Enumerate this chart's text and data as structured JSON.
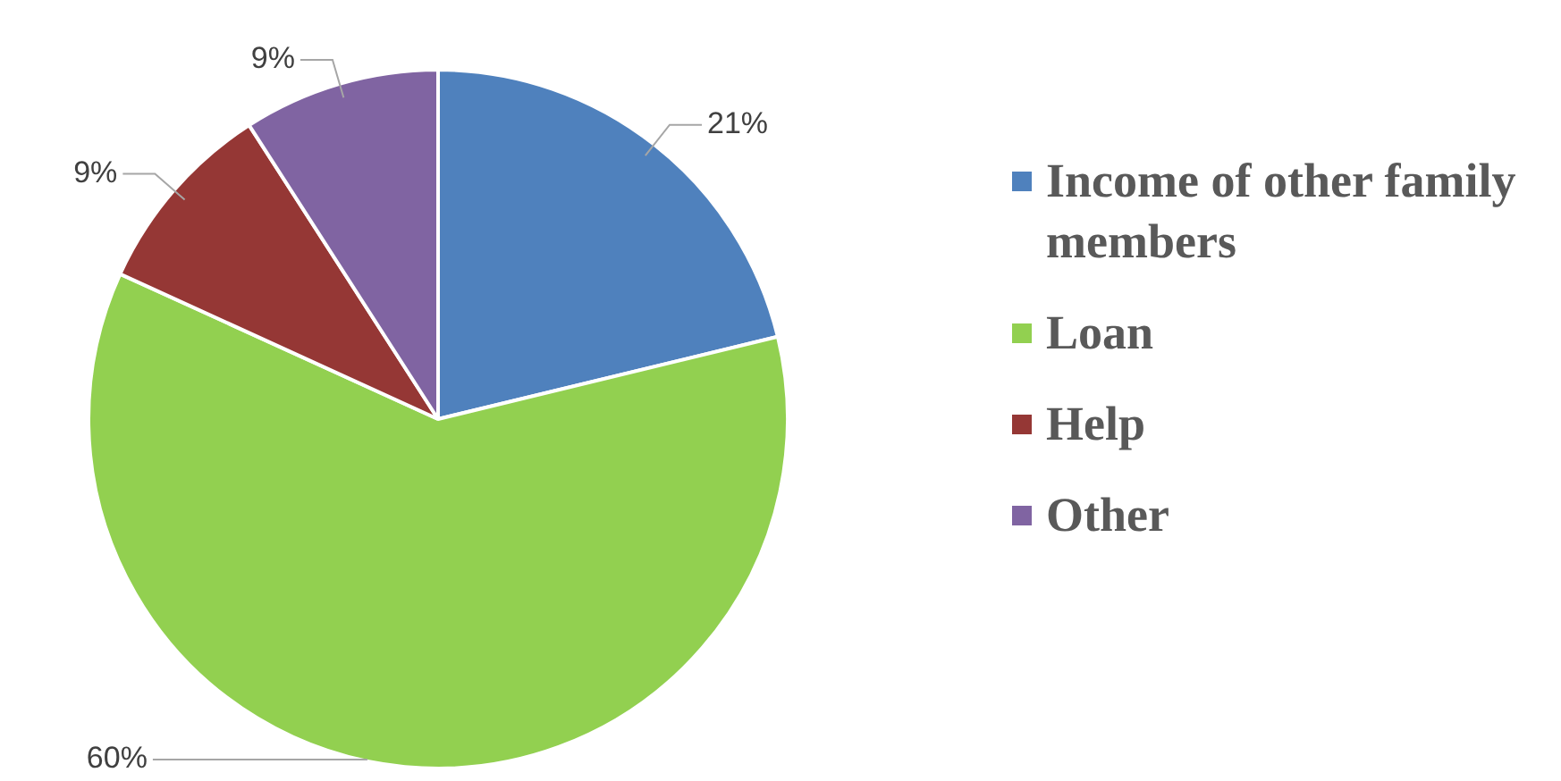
{
  "chart_data": {
    "type": "pie",
    "categories": [
      "Income of other family members",
      "Loan",
      "Help",
      "Other"
    ],
    "values": [
      21,
      60,
      9,
      9
    ],
    "colors": [
      "#4f81bd",
      "#92d050",
      "#953735",
      "#8064a2"
    ],
    "value_labels": [
      "21%",
      "60%",
      "9%",
      "9%"
    ],
    "legend": "right"
  }
}
